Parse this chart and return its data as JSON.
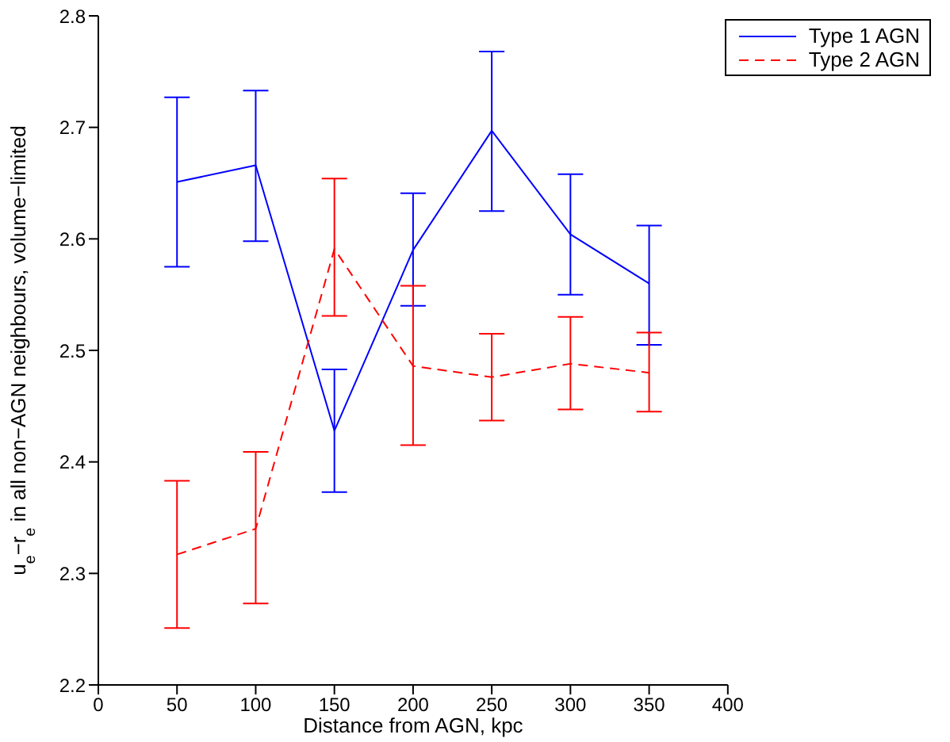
{
  "chart_data": {
    "type": "line",
    "xlabel": "Distance from AGN, kpc",
    "ylabel": "u$_{e}$−r$_{e}$ in all non−AGN neighbours, volume−limited",
    "x": [
      50,
      100,
      150,
      200,
      250,
      300,
      350
    ],
    "series": [
      {
        "name": "Type 1 AGN",
        "color": "#0000ff",
        "line_style": "solid",
        "values": [
          2.651,
          2.666,
          2.428,
          2.59,
          2.697,
          2.604,
          2.56
        ],
        "errors": [
          [
            2.575,
            2.727
          ],
          [
            2.598,
            2.733
          ],
          [
            2.373,
            2.483
          ],
          [
            2.54,
            2.641
          ],
          [
            2.625,
            2.768
          ],
          [
            2.55,
            2.658
          ],
          [
            2.505,
            2.612
          ]
        ]
      },
      {
        "name": "Type 2 AGN",
        "color": "#ff0000",
        "line_style": "dashed",
        "values": [
          2.317,
          2.34,
          2.591,
          2.486,
          2.476,
          2.488,
          2.48
        ],
        "errors": [
          [
            2.251,
            2.383
          ],
          [
            2.273,
            2.409
          ],
          [
            2.531,
            2.654
          ],
          [
            2.415,
            2.558
          ],
          [
            2.437,
            2.515
          ],
          [
            2.447,
            2.53
          ],
          [
            2.445,
            2.516
          ]
        ]
      }
    ],
    "xlim": [
      0,
      400
    ],
    "xticks": [
      0,
      50,
      100,
      150,
      200,
      250,
      300,
      350,
      400
    ],
    "ylim": [
      2.2,
      2.8
    ],
    "yticks": [
      2.2,
      2.3,
      2.4,
      2.5,
      2.6,
      2.7,
      2.8
    ],
    "legend": "top right",
    "marker": "none",
    "grid": false
  }
}
